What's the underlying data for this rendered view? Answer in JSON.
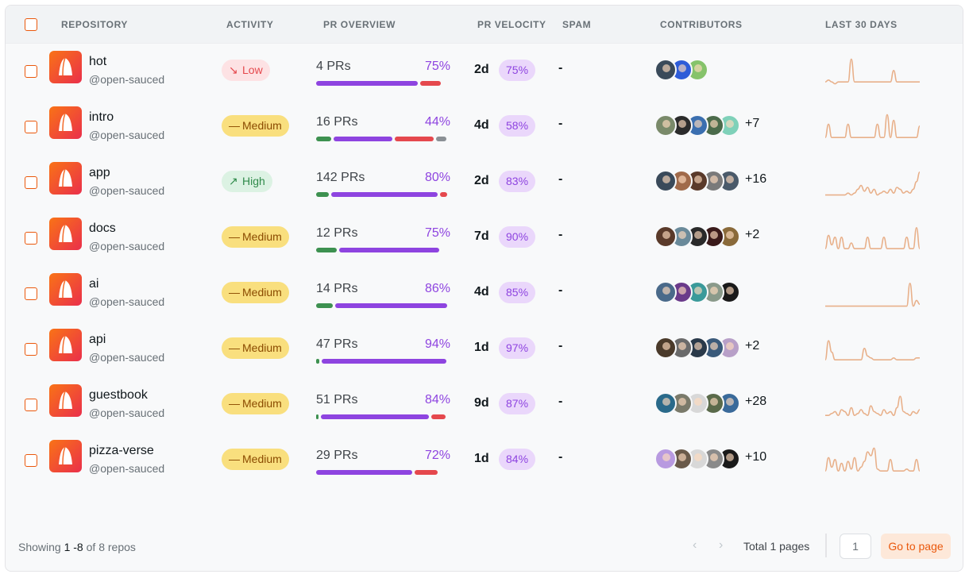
{
  "header": {
    "repository": "REPOSITORY",
    "activity": "ACTIVITY",
    "pr_overview": "PR OVERVIEW",
    "pr_velocity": "PR VELOCITY",
    "spam": "SPAM",
    "contributors": "CONTRIBUTORS",
    "last_30_days": "LAST 30 DAYS"
  },
  "rows": [
    {
      "name": "hot",
      "org": "@open-sauced",
      "activity": "Low",
      "activity_icon": "trending-down-icon",
      "prs": "4 PRs",
      "pr_pct": "75%",
      "pr_split": {
        "merged": 0,
        "open": 0.77,
        "closed": 0.17,
        "draft": 0
      },
      "velocity": "2d",
      "velocity_pct": "75%",
      "spam": "-",
      "more": "",
      "avatar_colors": [
        "#3a4a5a",
        "#2e5cd8",
        "#86c36b"
      ],
      "spark": [
        2,
        3,
        2,
        1,
        2,
        2,
        2,
        2,
        14,
        2,
        2,
        2,
        2,
        2,
        2,
        2,
        2,
        2,
        2,
        2,
        2,
        8,
        2,
        2,
        2,
        2,
        2,
        2,
        2,
        2
      ]
    },
    {
      "name": "intro",
      "org": "@open-sauced",
      "activity": "Medium",
      "activity_icon": "minus-icon",
      "prs": "16 PRs",
      "pr_pct": "44%",
      "pr_split": {
        "merged": 0.13,
        "open": 0.45,
        "closed": 0.31,
        "draft": 0.09
      },
      "velocity": "4d",
      "velocity_pct": "58%",
      "spam": "-",
      "more": "+7",
      "avatar_colors": [
        "#7a8a6a",
        "#2b2b2b",
        "#3b6fb0",
        "#4b6b4b",
        "#7fd1b9"
      ],
      "spark": [
        2,
        9,
        2,
        2,
        2,
        2,
        2,
        9,
        2,
        2,
        2,
        2,
        2,
        2,
        2,
        2,
        9,
        2,
        2,
        14,
        2,
        11,
        2,
        2,
        2,
        2,
        2,
        2,
        2,
        8
      ]
    },
    {
      "name": "app",
      "org": "@open-sauced",
      "activity": "High",
      "activity_icon": "trending-up-icon",
      "prs": "142 PRs",
      "pr_pct": "80%",
      "pr_split": {
        "merged": 0.11,
        "open": 0.81,
        "closed": 0.07,
        "draft": 0
      },
      "velocity": "2d",
      "velocity_pct": "83%",
      "spam": "-",
      "more": "+16",
      "avatar_colors": [
        "#3a4a5a",
        "#a06a4a",
        "#5a3a2a",
        "#7a7a7a",
        "#4a5a6a"
      ],
      "spark": [
        1,
        1,
        1,
        1,
        1,
        1,
        1,
        2,
        1,
        2,
        4,
        6,
        3,
        5,
        2,
        4,
        1,
        2,
        3,
        2,
        4,
        2,
        5,
        4,
        2,
        3,
        2,
        4,
        8,
        13
      ]
    },
    {
      "name": "docs",
      "org": "@open-sauced",
      "activity": "Medium",
      "activity_icon": "minus-icon",
      "prs": "12 PRs",
      "pr_pct": "75%",
      "pr_split": {
        "merged": 0.17,
        "open": 0.76,
        "closed": 0,
        "draft": 0
      },
      "velocity": "7d",
      "velocity_pct": "90%",
      "spam": "-",
      "more": "+2",
      "avatar_colors": [
        "#5a3a2a",
        "#6a8a9a",
        "#2a2a2a",
        "#3a1a1a",
        "#8a6a3a"
      ],
      "spark": [
        2,
        9,
        4,
        8,
        2,
        8,
        2,
        2,
        5,
        2,
        2,
        2,
        2,
        8,
        2,
        2,
        2,
        2,
        8,
        2,
        2,
        2,
        2,
        2,
        2,
        8,
        2,
        2,
        13,
        2
      ]
    },
    {
      "name": "ai",
      "org": "@open-sauced",
      "activity": "Medium",
      "activity_icon": "minus-icon",
      "prs": "14 PRs",
      "pr_pct": "86%",
      "pr_split": {
        "merged": 0.14,
        "open": 0.85,
        "closed": 0,
        "draft": 0
      },
      "velocity": "4d",
      "velocity_pct": "85%",
      "spam": "-",
      "more": "",
      "avatar_colors": [
        "#4a6a8a",
        "#6a3a8a",
        "#3a9a9a",
        "#8a9a8a",
        "#1a1a1a"
      ],
      "spark": [
        1,
        1,
        1,
        1,
        1,
        1,
        1,
        1,
        1,
        1,
        1,
        1,
        1,
        1,
        1,
        1,
        1,
        1,
        1,
        1,
        1,
        1,
        1,
        1,
        1,
        1,
        13,
        1,
        4,
        2
      ]
    },
    {
      "name": "api",
      "org": "@open-sauced",
      "activity": "Medium",
      "activity_icon": "minus-icon",
      "prs": "47 PRs",
      "pr_pct": "94%",
      "pr_split": {
        "merged": 0.04,
        "open": 0.94,
        "closed": 0,
        "draft": 0
      },
      "velocity": "1d",
      "velocity_pct": "97%",
      "spam": "-",
      "more": "+2",
      "avatar_colors": [
        "#4a3a2a",
        "#6a6a6a",
        "#2a3a4a",
        "#3a5a7a",
        "#b8a0c8"
      ],
      "spark": [
        2,
        12,
        6,
        2,
        2,
        2,
        2,
        2,
        2,
        2,
        2,
        2,
        8,
        4,
        3,
        2,
        2,
        2,
        2,
        2,
        2,
        3,
        2,
        2,
        2,
        2,
        2,
        2,
        3,
        3
      ]
    },
    {
      "name": "guestbook",
      "org": "@open-sauced",
      "activity": "Medium",
      "activity_icon": "minus-icon",
      "prs": "51 PRs",
      "pr_pct": "84%",
      "pr_split": {
        "merged": 0.02,
        "open": 0.82,
        "closed": 0.12,
        "draft": 0
      },
      "velocity": "9d",
      "velocity_pct": "87%",
      "spam": "-",
      "more": "+28",
      "avatar_colors": [
        "#2a6a8a",
        "#7a7a6a",
        "#d8d8d8",
        "#5a6a4a",
        "#3a6a9a"
      ],
      "spark": [
        2,
        2,
        3,
        4,
        2,
        5,
        4,
        2,
        6,
        2,
        3,
        5,
        3,
        2,
        7,
        4,
        3,
        2,
        5,
        3,
        4,
        2,
        6,
        12,
        4,
        3,
        2,
        4,
        3,
        5
      ]
    },
    {
      "name": "pizza-verse",
      "org": "@open-sauced",
      "activity": "Medium",
      "activity_icon": "minus-icon",
      "prs": "29 PRs",
      "pr_pct": "72%",
      "pr_split": {
        "merged": 0,
        "open": 0.73,
        "closed": 0.19,
        "draft": 0
      },
      "velocity": "1d",
      "velocity_pct": "84%",
      "spam": "-",
      "more": "+10",
      "avatar_colors": [
        "#b89ae0",
        "#6a5a4a",
        "#d8d8d8",
        "#8a8a8a",
        "#1a1a1a"
      ],
      "spark": [
        2,
        9,
        4,
        8,
        2,
        6,
        2,
        7,
        3,
        9,
        2,
        4,
        7,
        12,
        10,
        14,
        3,
        2,
        2,
        2,
        8,
        2,
        2,
        2,
        2,
        3,
        2,
        2,
        8,
        2
      ]
    }
  ],
  "footer": {
    "showing_prefix": "Showing",
    "range": "1 -8",
    "of_label": "of",
    "count": "8",
    "repos_label": "repos",
    "prev_icon": "chevron-left-icon",
    "next_icon": "chevron-right-icon",
    "total_pages": "Total 1 pages",
    "page_input_value": "1",
    "go_button": "Go to page"
  },
  "colors": {
    "accent": "#ea580c",
    "purple": "#8e44e0",
    "merged": "#3d9150",
    "closed": "#e5484d",
    "draft": "#8b9095",
    "spark": "#e8b08a"
  }
}
